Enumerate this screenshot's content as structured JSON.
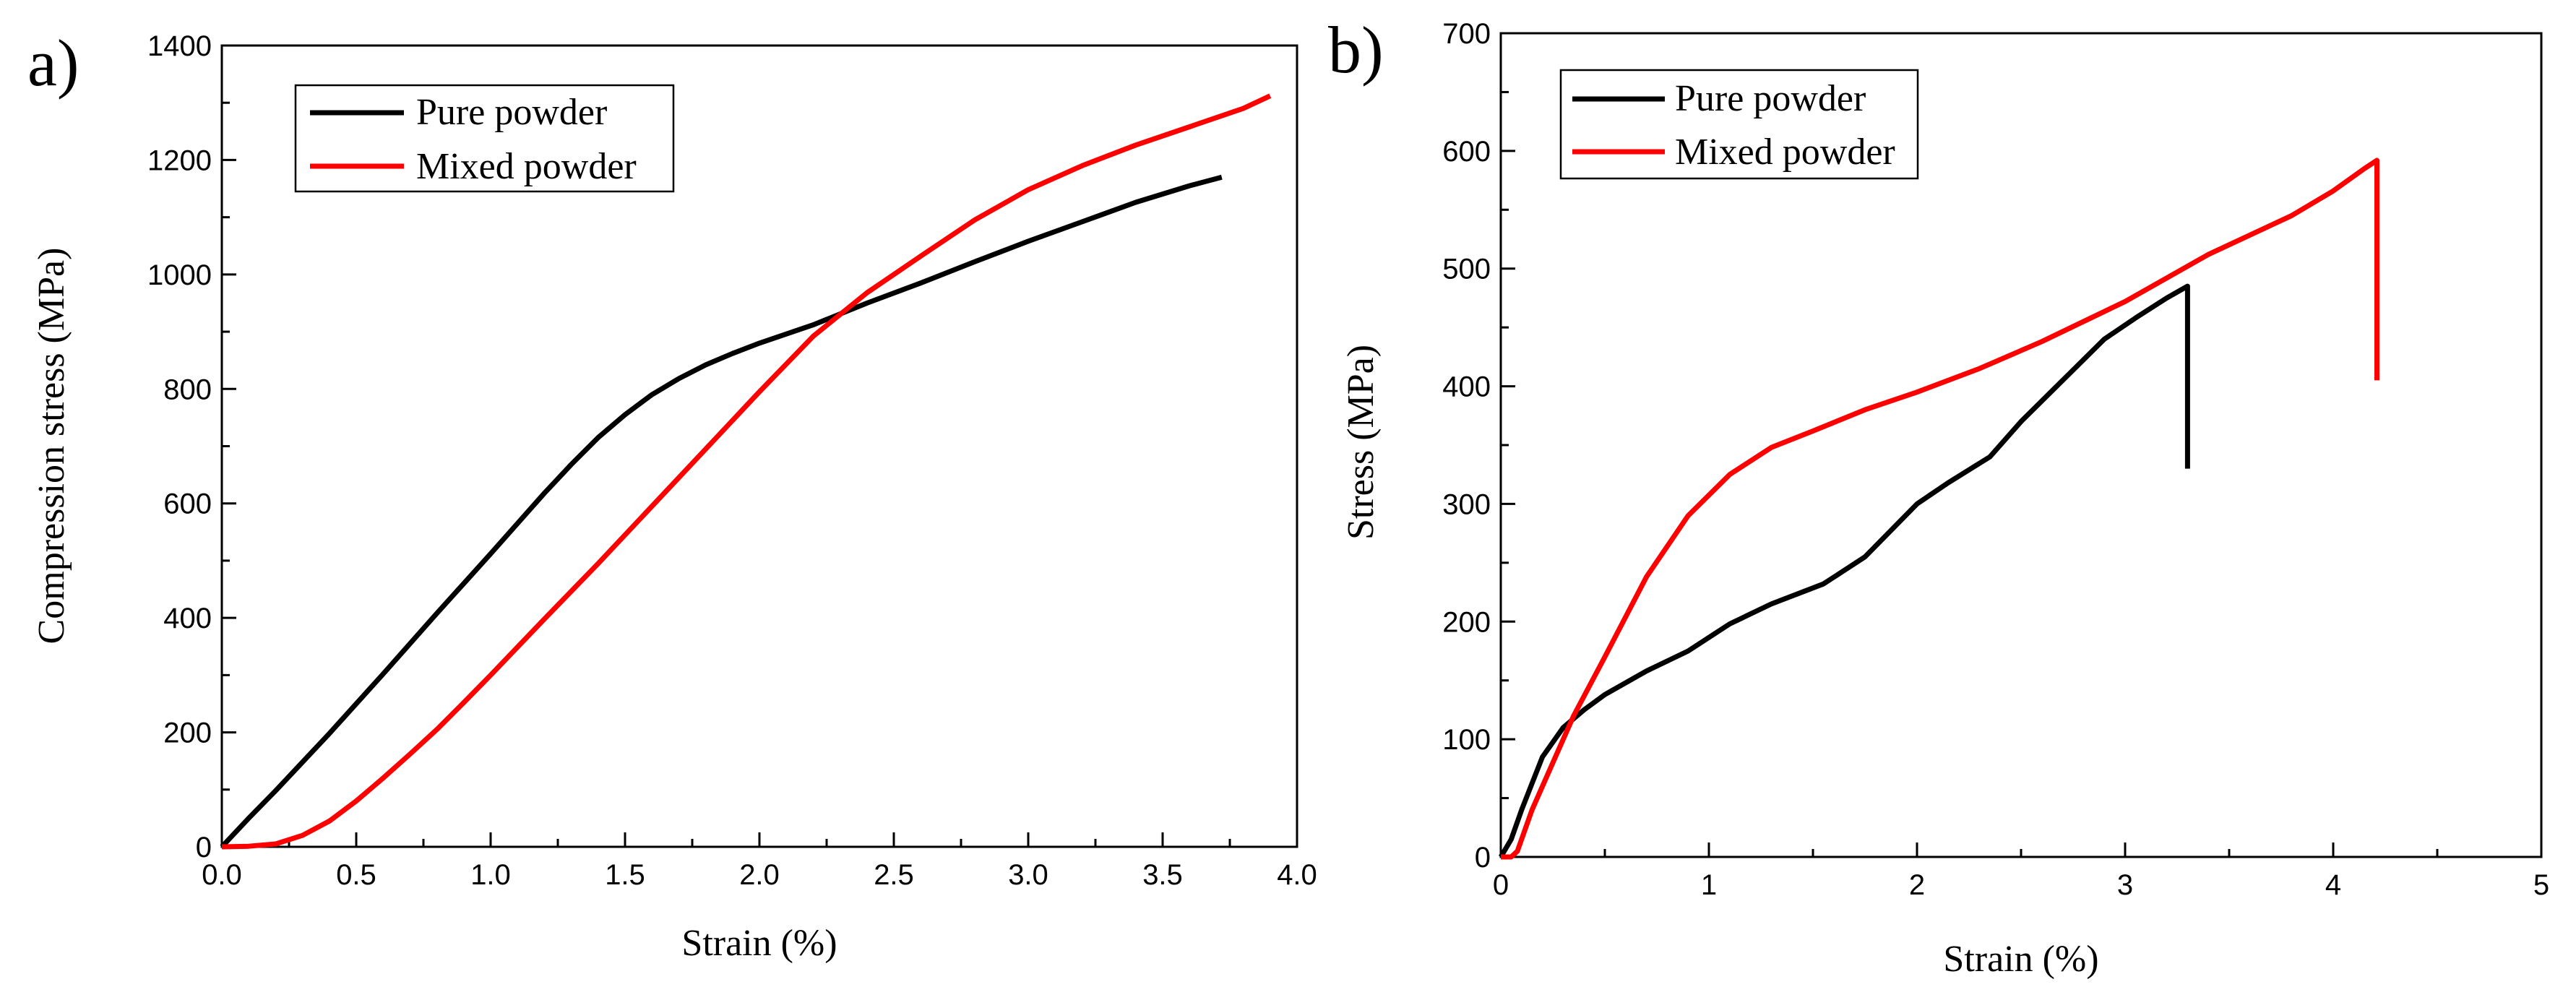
{
  "chart_data": [
    {
      "type": "line",
      "panel_label": "a)",
      "xlabel": "Strain (%)",
      "ylabel": "Compression stress (MPa)",
      "xlim": [
        0,
        4.0
      ],
      "ylim": [
        0,
        1400
      ],
      "xticks": [
        0.0,
        0.5,
        1.0,
        1.5,
        2.0,
        2.5,
        3.0,
        3.5,
        4.0
      ],
      "xtick_labels": [
        "0.0",
        "0.5",
        "1.0",
        "1.5",
        "2.0",
        "2.5",
        "3.0",
        "3.5",
        "4.0"
      ],
      "yticks": [
        0,
        200,
        400,
        600,
        800,
        1000,
        1200,
        1400
      ],
      "ytick_labels": [
        "0",
        "200",
        "400",
        "600",
        "800",
        "1000",
        "1200",
        "1400"
      ],
      "legend_position": "top-left",
      "series": [
        {
          "name": "Pure powder",
          "color": "#000000",
          "x": [
            0,
            0.1,
            0.2,
            0.3,
            0.4,
            0.5,
            0.6,
            0.7,
            0.8,
            0.9,
            1.0,
            1.1,
            1.2,
            1.3,
            1.4,
            1.5,
            1.6,
            1.7,
            1.8,
            1.9,
            2.0,
            2.2,
            2.4,
            2.6,
            2.8,
            3.0,
            3.2,
            3.4,
            3.6,
            3.72
          ],
          "y": [
            0,
            50,
            98,
            148,
            198,
            250,
            302,
            355,
            408,
            460,
            512,
            565,
            618,
            668,
            715,
            755,
            790,
            818,
            842,
            862,
            880,
            912,
            950,
            985,
            1022,
            1058,
            1092,
            1126,
            1155,
            1170
          ]
        },
        {
          "name": "Mixed powder",
          "color": "#ff0000",
          "x": [
            0,
            0.1,
            0.2,
            0.3,
            0.4,
            0.5,
            0.6,
            0.7,
            0.8,
            0.9,
            1.0,
            1.2,
            1.4,
            1.6,
            1.8,
            2.0,
            2.2,
            2.4,
            2.5,
            2.6,
            2.8,
            3.0,
            3.2,
            3.4,
            3.6,
            3.8,
            3.9
          ],
          "y": [
            0,
            1,
            5,
            20,
            45,
            80,
            120,
            162,
            205,
            252,
            300,
            398,
            495,
            595,
            695,
            795,
            892,
            968,
            1000,
            1032,
            1095,
            1148,
            1190,
            1226,
            1258,
            1290,
            1312
          ]
        }
      ]
    },
    {
      "type": "line",
      "panel_label": "b)",
      "xlabel": "Strain (%)",
      "ylabel": "Stress (MPa)",
      "xlim": [
        0,
        5
      ],
      "ylim": [
        0,
        700
      ],
      "xticks": [
        0,
        1,
        2,
        3,
        4,
        5
      ],
      "xtick_labels": [
        "0",
        "1",
        "2",
        "3",
        "4",
        "5"
      ],
      "yticks": [
        0,
        100,
        200,
        300,
        400,
        500,
        600,
        700
      ],
      "ytick_labels": [
        "0",
        "100",
        "200",
        "300",
        "400",
        "500",
        "600",
        "700"
      ],
      "legend_position": "top-left",
      "series": [
        {
          "name": "Pure powder",
          "color": "#000000",
          "x": [
            0,
            0.05,
            0.1,
            0.2,
            0.3,
            0.4,
            0.5,
            0.7,
            0.9,
            1.1,
            1.3,
            1.55,
            1.75,
            2.0,
            2.15,
            2.35,
            2.5,
            2.7,
            2.9,
            3.05,
            3.2,
            3.3,
            3.3,
            3.3
          ],
          "y": [
            0,
            15,
            40,
            85,
            110,
            125,
            138,
            158,
            175,
            198,
            215,
            232,
            255,
            300,
            318,
            340,
            370,
            405,
            440,
            458,
            475,
            485,
            400,
            330
          ]
        },
        {
          "name": "Mixed powder",
          "color": "#ff0000",
          "x": [
            0,
            0.05,
            0.08,
            0.15,
            0.25,
            0.35,
            0.5,
            0.7,
            0.9,
            1.1,
            1.3,
            1.5,
            1.75,
            2.0,
            2.3,
            2.6,
            3.0,
            3.4,
            3.8,
            4.0,
            4.15,
            4.21,
            4.21,
            4.21
          ],
          "y": [
            0,
            0,
            5,
            40,
            80,
            120,
            170,
            238,
            290,
            325,
            348,
            362,
            380,
            395,
            415,
            438,
            472,
            512,
            545,
            566,
            585,
            592,
            500,
            405
          ]
        }
      ]
    }
  ]
}
